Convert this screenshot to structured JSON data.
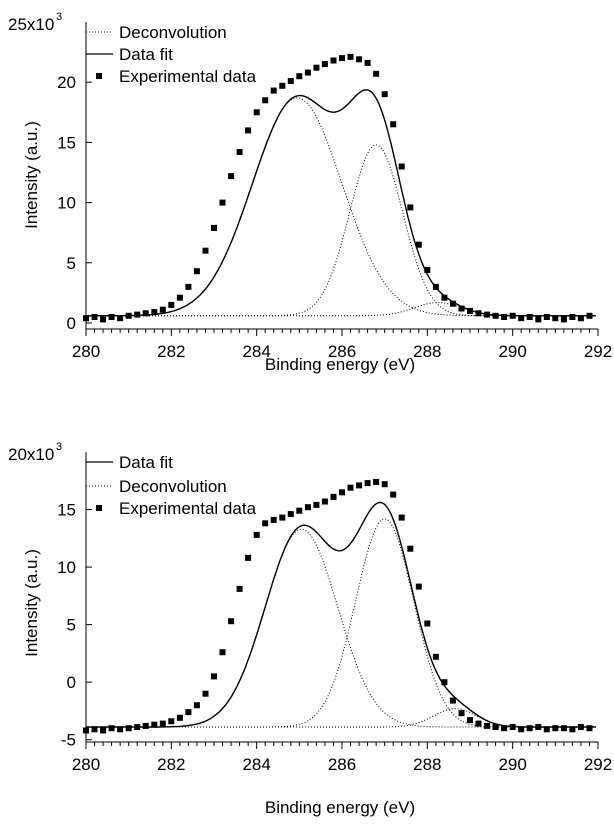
{
  "chart_data": [
    {
      "type": "line",
      "xlabel": "Binding energy (eV)",
      "ylabel": "Intensity (a.u.)",
      "xlim": [
        280,
        292
      ],
      "ylim": [
        -0.5,
        25
      ],
      "x_ticks": [
        280,
        282,
        284,
        286,
        288,
        290,
        292
      ],
      "y_ticks": [
        0,
        5,
        10,
        15,
        20
      ],
      "y_tick_labels": [
        "0",
        "5",
        "10",
        "15",
        "20",
        "25x10"
      ],
      "y_multiplier_base": "25x10",
      "y_multiplier_exp": "3",
      "legend_position": "top-left",
      "legend": [
        {
          "label": "Deconvolution",
          "style": "dotted"
        },
        {
          "label": "Data fit",
          "style": "solid"
        },
        {
          "label": "Experimental data",
          "style": "marker-square"
        }
      ],
      "baseline": 0.6,
      "components": [
        {
          "center": 284.95,
          "height": 18.1,
          "width": 1.05
        },
        {
          "center": 286.8,
          "height": 14.2,
          "width": 0.62
        },
        {
          "center": 288.25,
          "height": 1.1,
          "width": 0.55
        }
      ],
      "experimental": {
        "x": [
          280.0,
          280.2,
          280.4,
          280.6,
          280.8,
          281.0,
          281.2,
          281.4,
          281.6,
          281.8,
          282.0,
          282.2,
          282.4,
          282.6,
          282.8,
          283.0,
          283.2,
          283.4,
          283.6,
          283.8,
          284.0,
          284.2,
          284.4,
          284.6,
          284.8,
          285.0,
          285.2,
          285.4,
          285.6,
          285.8,
          286.0,
          286.2,
          286.4,
          286.6,
          286.8,
          287.0,
          287.2,
          287.4,
          287.6,
          287.8,
          288.0,
          288.2,
          288.4,
          288.6,
          288.8,
          289.0,
          289.2,
          289.4,
          289.6,
          289.8,
          290.0,
          290.2,
          290.4,
          290.6,
          290.8,
          291.0,
          291.2,
          291.4,
          291.6,
          291.8
        ],
        "y": [
          0.4,
          0.5,
          0.3,
          0.5,
          0.4,
          0.6,
          0.7,
          0.8,
          0.9,
          1.1,
          1.5,
          2.1,
          3.0,
          4.3,
          6.0,
          7.9,
          10.0,
          12.2,
          14.2,
          16.0,
          17.5,
          18.5,
          19.3,
          19.7,
          20.1,
          20.5,
          20.8,
          21.2,
          21.5,
          21.8,
          22.0,
          22.1,
          21.9,
          21.6,
          20.7,
          19.0,
          16.5,
          13.0,
          9.6,
          6.5,
          4.4,
          3.0,
          2.1,
          1.6,
          1.2,
          1.0,
          0.8,
          0.7,
          0.6,
          0.5,
          0.6,
          0.4,
          0.5,
          0.3,
          0.5,
          0.4,
          0.3,
          0.5,
          0.4,
          0.6
        ]
      }
    },
    {
      "type": "line",
      "xlabel": "Binding energy (eV)",
      "ylabel": "Intensity (a.u.)",
      "xlim": [
        280,
        292
      ],
      "ylim": [
        -5.2,
        20
      ],
      "x_ticks": [
        280,
        282,
        284,
        286,
        288,
        290,
        292
      ],
      "y_ticks": [
        -5,
        0,
        5,
        10,
        15
      ],
      "y_tick_labels": [
        "-5",
        "0",
        "5",
        "10",
        "15",
        "20x10"
      ],
      "y_multiplier_base": "20x10",
      "y_multiplier_exp": "3",
      "legend_position": "top-left",
      "legend": [
        {
          "label": "Data fit",
          "style": "solid"
        },
        {
          "label": "Deconvolution",
          "style": "dotted"
        },
        {
          "label": "Experimental data",
          "style": "marker-square"
        }
      ],
      "baseline": -3.9,
      "components": [
        {
          "center": 285.05,
          "height": 17.2,
          "width": 0.85
        },
        {
          "center": 287.0,
          "height": 18.1,
          "width": 0.68
        },
        {
          "center": 288.65,
          "height": 1.6,
          "width": 0.5
        }
      ],
      "experimental": {
        "x": [
          280.0,
          280.2,
          280.4,
          280.6,
          280.8,
          281.0,
          281.2,
          281.4,
          281.6,
          281.8,
          282.0,
          282.2,
          282.4,
          282.6,
          282.8,
          283.0,
          283.2,
          283.4,
          283.6,
          283.8,
          284.0,
          284.2,
          284.4,
          284.6,
          284.8,
          285.0,
          285.2,
          285.4,
          285.6,
          285.8,
          286.0,
          286.2,
          286.4,
          286.6,
          286.8,
          287.0,
          287.2,
          287.4,
          287.6,
          287.8,
          288.0,
          288.2,
          288.4,
          288.6,
          288.8,
          289.0,
          289.2,
          289.4,
          289.6,
          289.8,
          290.0,
          290.2,
          290.4,
          290.6,
          290.8,
          291.0,
          291.2,
          291.4,
          291.6,
          291.8
        ],
        "y": [
          -4.2,
          -4.1,
          -4.2,
          -4.0,
          -4.1,
          -4.0,
          -3.9,
          -3.8,
          -3.7,
          -3.6,
          -3.4,
          -3.1,
          -2.6,
          -2.0,
          -1.0,
          0.5,
          2.6,
          5.3,
          8.1,
          10.8,
          12.8,
          13.8,
          14.1,
          14.3,
          14.6,
          14.9,
          15.2,
          15.4,
          15.7,
          16.1,
          16.5,
          16.9,
          17.1,
          17.3,
          17.4,
          17.2,
          16.3,
          14.3,
          11.6,
          8.3,
          5.1,
          2.2,
          0.0,
          -1.6,
          -2.7,
          -3.3,
          -3.6,
          -3.8,
          -3.9,
          -4.0,
          -3.9,
          -4.1,
          -4.0,
          -3.9,
          -4.1,
          -4.0,
          -4.0,
          -4.1,
          -3.9,
          -4.0
        ]
      }
    }
  ]
}
